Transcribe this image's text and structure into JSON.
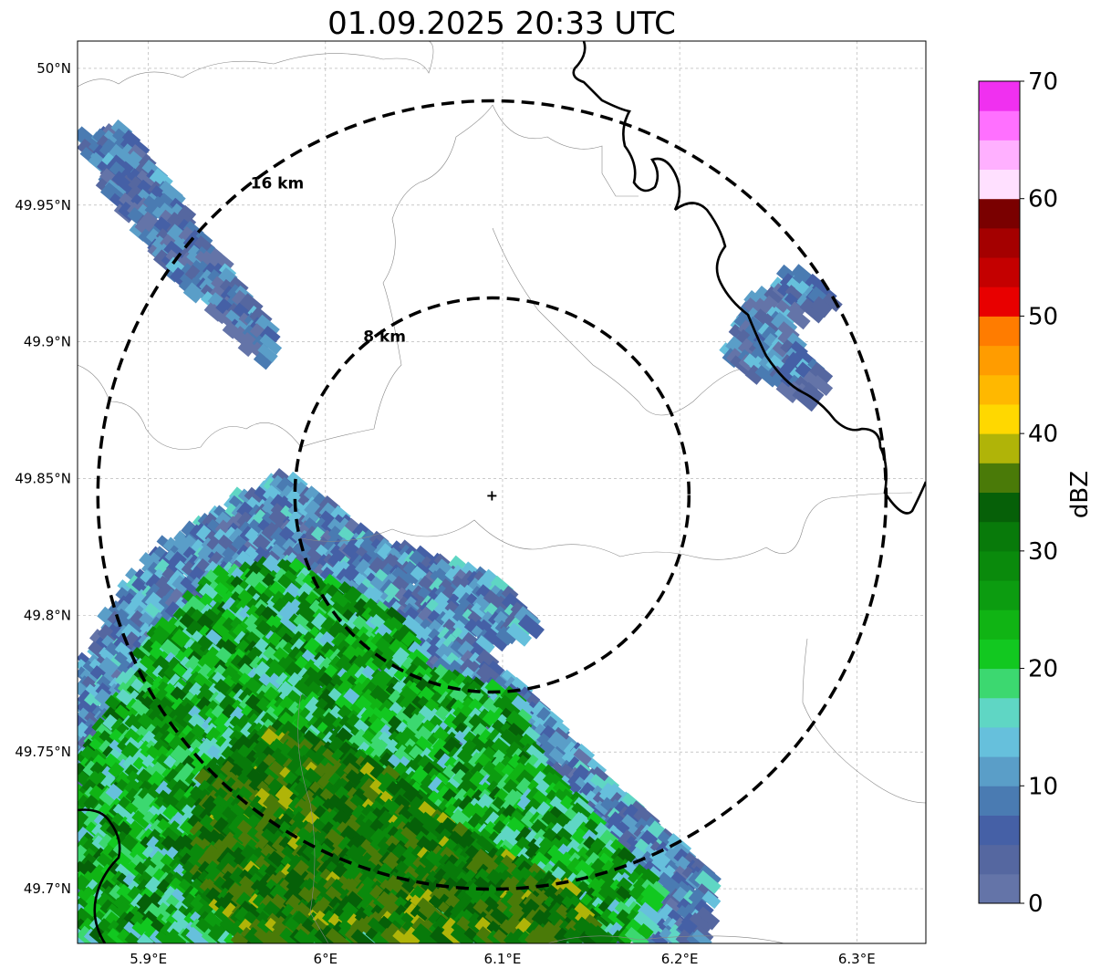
{
  "title": "01.09.2025 20:33 UTC",
  "map": {
    "lon_range": [
      5.86,
      6.339
    ],
    "lat_range": [
      49.68,
      50.01
    ],
    "lon_ticks": [
      {
        "v": 5.9,
        "label": "5.9°E"
      },
      {
        "v": 6.0,
        "label": "6°E"
      },
      {
        "v": 6.1,
        "label": "6.1°E"
      },
      {
        "v": 6.2,
        "label": "6.2°E"
      },
      {
        "v": 6.3,
        "label": "6.3°E"
      }
    ],
    "lat_ticks": [
      {
        "v": 50.0,
        "label": "50°N"
      },
      {
        "v": 49.95,
        "label": "49.95°N"
      },
      {
        "v": 49.9,
        "label": "49.9°N"
      },
      {
        "v": 49.85,
        "label": "49.85°N"
      },
      {
        "v": 49.8,
        "label": "49.8°N"
      },
      {
        "v": 49.75,
        "label": "49.75°N"
      },
      {
        "v": 49.7,
        "label": "49.7°N"
      }
    ],
    "radar_site": {
      "lon": 6.094,
      "lat": 49.844
    },
    "range_rings": [
      {
        "km": 8,
        "label": "8 km"
      },
      {
        "km": 16,
        "label": "16 km"
      }
    ],
    "echo_regions": [
      {
        "name": "nw-band",
        "dbz": [
          1,
          13
        ],
        "poly": [
          [
            5.862,
            49.975
          ],
          [
            5.885,
            49.98
          ],
          [
            5.93,
            49.94
          ],
          [
            5.975,
            49.9
          ],
          [
            5.965,
            49.892
          ],
          [
            5.92,
            49.92
          ],
          [
            5.875,
            49.955
          ]
        ]
      },
      {
        "name": "ne-cluster",
        "dbz": [
          1,
          15
        ],
        "poly": [
          [
            6.225,
            49.893
          ],
          [
            6.24,
            49.915
          ],
          [
            6.265,
            49.927
          ],
          [
            6.29,
            49.915
          ],
          [
            6.26,
            49.905
          ],
          [
            6.285,
            49.885
          ],
          [
            6.27,
            49.878
          ],
          [
            6.245,
            49.887
          ]
        ]
      },
      {
        "name": "south-edge",
        "dbz": [
          2,
          16
        ],
        "poly": [
          [
            5.86,
            49.78
          ],
          [
            5.9,
            49.82
          ],
          [
            5.93,
            49.835
          ],
          [
            5.98,
            49.852
          ],
          [
            6.03,
            49.828
          ],
          [
            6.07,
            49.82
          ],
          [
            6.1,
            49.812
          ],
          [
            6.12,
            49.795
          ],
          [
            6.09,
            49.787
          ],
          [
            6.14,
            49.755
          ],
          [
            6.16,
            49.74
          ],
          [
            6.22,
            49.705
          ],
          [
            6.215,
            49.68
          ],
          [
            5.86,
            49.68
          ]
        ]
      },
      {
        "name": "south-core",
        "dbz": [
          14,
          34
        ],
        "poly": [
          [
            5.86,
            49.745
          ],
          [
            5.9,
            49.79
          ],
          [
            5.94,
            49.815
          ],
          [
            5.98,
            49.82
          ],
          [
            6.04,
            49.8
          ],
          [
            6.06,
            49.78
          ],
          [
            6.11,
            49.77
          ],
          [
            6.12,
            49.75
          ],
          [
            6.16,
            49.72
          ],
          [
            6.19,
            49.7
          ],
          [
            6.18,
            49.68
          ],
          [
            5.86,
            49.68
          ]
        ]
      },
      {
        "name": "south-strong",
        "dbz": [
          28,
          38
        ],
        "poly": [
          [
            5.93,
            49.74
          ],
          [
            5.97,
            49.76
          ],
          [
            6.02,
            49.75
          ],
          [
            6.08,
            49.72
          ],
          [
            6.14,
            49.7
          ],
          [
            6.16,
            49.68
          ],
          [
            5.95,
            49.68
          ],
          [
            5.92,
            49.71
          ]
        ]
      }
    ]
  },
  "colorbar": {
    "label": "dBZ",
    "min": 0,
    "max": 70,
    "step": 2.5,
    "ticks": [
      {
        "v": 0,
        "label": "0"
      },
      {
        "v": 10,
        "label": "10"
      },
      {
        "v": 20,
        "label": "20"
      },
      {
        "v": 30,
        "label": "30"
      },
      {
        "v": 40,
        "label": "40"
      },
      {
        "v": 50,
        "label": "50"
      },
      {
        "v": 60,
        "label": "60"
      },
      {
        "v": 70,
        "label": "70"
      }
    ],
    "colors": [
      "#6474a8",
      "#5567a0",
      "#4560a6",
      "#4a7bb2",
      "#5a9ec8",
      "#66c0dc",
      "#5fd6c4",
      "#3cd870",
      "#12c820",
      "#10b414",
      "#0c9c10",
      "#0a8a0c",
      "#087a0a",
      "#066008",
      "#4a7a08",
      "#b0b408",
      "#ffd800",
      "#ffb800",
      "#ff9c00",
      "#ff7c00",
      "#e80000",
      "#c40000",
      "#a40000",
      "#7a0000",
      "#ffe0ff",
      "#ffb0ff",
      "#ff70ff",
      "#f030f0"
    ]
  }
}
